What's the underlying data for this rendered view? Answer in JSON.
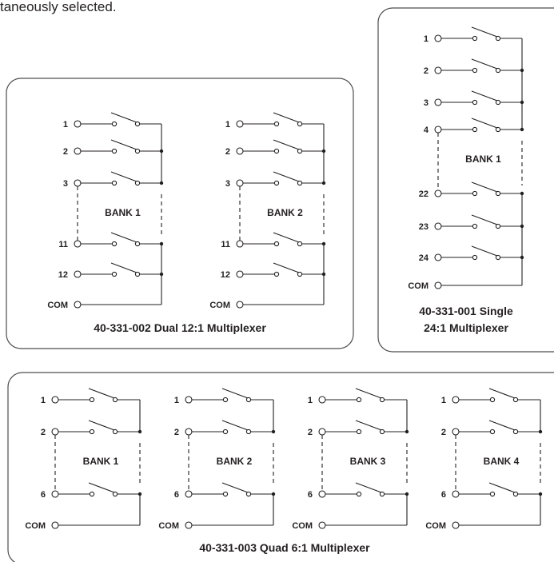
{
  "top_text": "taneously selected.",
  "dual": {
    "caption": "40-331-002 Dual 12:1 Multiplexer",
    "banks": [
      {
        "label": "BANK 1",
        "pins": [
          "1",
          "2",
          "3",
          "11",
          "12"
        ],
        "com": "COM"
      },
      {
        "label": "BANK 2",
        "pins": [
          "1",
          "2",
          "3",
          "11",
          "12"
        ],
        "com": "COM"
      }
    ]
  },
  "single": {
    "caption_line1": "40-331-001 Single",
    "caption_line2": "24:1 Multiplexer",
    "banks": [
      {
        "label": "BANK 1",
        "pins": [
          "1",
          "2",
          "3",
          "4",
          "22",
          "23",
          "24"
        ],
        "com": "COM"
      }
    ]
  },
  "quad": {
    "caption": "40-331-003 Quad 6:1 Multiplexer",
    "banks": [
      {
        "label": "BANK 1",
        "pins": [
          "1",
          "2",
          "6"
        ],
        "com": "COM"
      },
      {
        "label": "BANK 2",
        "pins": [
          "1",
          "2",
          "6"
        ],
        "com": "COM"
      },
      {
        "label": "BANK 3",
        "pins": [
          "1",
          "2",
          "6"
        ],
        "com": "COM"
      },
      {
        "label": "BANK 4",
        "pins": [
          "1",
          "2",
          "6"
        ],
        "com": "COM"
      }
    ]
  }
}
